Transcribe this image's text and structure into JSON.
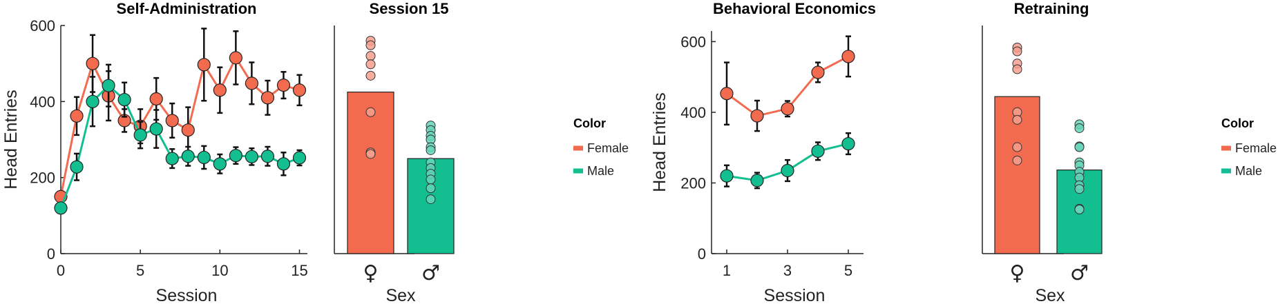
{
  "colors": {
    "female": "#F26B4F",
    "male": "#13BE91"
  },
  "legends": [
    {
      "title": "Color",
      "items": [
        "Female",
        "Male"
      ]
    },
    {
      "title": "Color",
      "items": [
        "Female",
        "Male"
      ]
    }
  ],
  "chart_data": [
    {
      "type": "line",
      "title": "Self-Administration",
      "xlabel": "Session",
      "ylabel": "Head Entries",
      "xlim": [
        0,
        15.5
      ],
      "ylim": [
        0,
        600
      ],
      "xticks": [
        "0",
        "5",
        "10",
        "15"
      ],
      "yticks": [
        "0",
        "200",
        "400",
        "600"
      ],
      "x": [
        0,
        1,
        2,
        3,
        4,
        5,
        6,
        7,
        8,
        9,
        10,
        11,
        12,
        13,
        14,
        15
      ],
      "series": [
        {
          "name": "Female",
          "values": [
            150,
            362,
            500,
            415,
            350,
            335,
            407,
            350,
            325,
            497,
            430,
            515,
            448,
            410,
            443,
            430
          ],
          "err": [
            10,
            50,
            75,
            65,
            30,
            45,
            55,
            45,
            60,
            95,
            60,
            70,
            55,
            45,
            35,
            40
          ]
        },
        {
          "name": "Male",
          "values": [
            120,
            228,
            400,
            442,
            405,
            312,
            328,
            250,
            256,
            253,
            236,
            258,
            255,
            256,
            236,
            252
          ],
          "err": [
            10,
            35,
            65,
            55,
            45,
            35,
            50,
            25,
            25,
            30,
            25,
            22,
            22,
            25,
            30,
            20
          ]
        }
      ]
    },
    {
      "type": "bar",
      "title": "Session 15",
      "xlabel": "Sex",
      "ylabel": "",
      "ylim": [
        0,
        600
      ],
      "categories": [
        "♀",
        "♂"
      ],
      "values": [
        425,
        250
      ],
      "points": [
        [
          560,
          548,
          520,
          498,
          468,
          372,
          266,
          262
        ],
        [
          337,
          325,
          310,
          300,
          280,
          272,
          240,
          225,
          210,
          195,
          172,
          143
        ]
      ]
    },
    {
      "type": "line",
      "title": "Behavioral Economics",
      "xlabel": "Session",
      "ylabel": "Head Entries",
      "xlim": [
        0.5,
        5.5
      ],
      "ylim": [
        0,
        630
      ],
      "xticks": [
        "1",
        "3",
        "5"
      ],
      "yticks": [
        "0",
        "200",
        "400",
        "600"
      ],
      "x": [
        1,
        2,
        3,
        4,
        5
      ],
      "series": [
        {
          "name": "Female",
          "values": [
            453,
            390,
            410,
            513,
            558
          ],
          "err": [
            88,
            43,
            22,
            28,
            57
          ]
        },
        {
          "name": "Male",
          "values": [
            220,
            207,
            235,
            290,
            311
          ],
          "err": [
            30,
            22,
            30,
            25,
            30
          ]
        }
      ]
    },
    {
      "type": "bar",
      "title": "Retraining",
      "xlabel": "Sex",
      "ylabel": "",
      "ylim": [
        0,
        600
      ],
      "categories": [
        "♀",
        "♂"
      ],
      "values": [
        413,
        220
      ],
      "points": [
        [
          542,
          532,
          500,
          485,
          372,
          352,
          280,
          245
        ],
        [
          340,
          330,
          282,
          280,
          240,
          232,
          215,
          200,
          180,
          170,
          118,
          116
        ]
      ]
    }
  ]
}
